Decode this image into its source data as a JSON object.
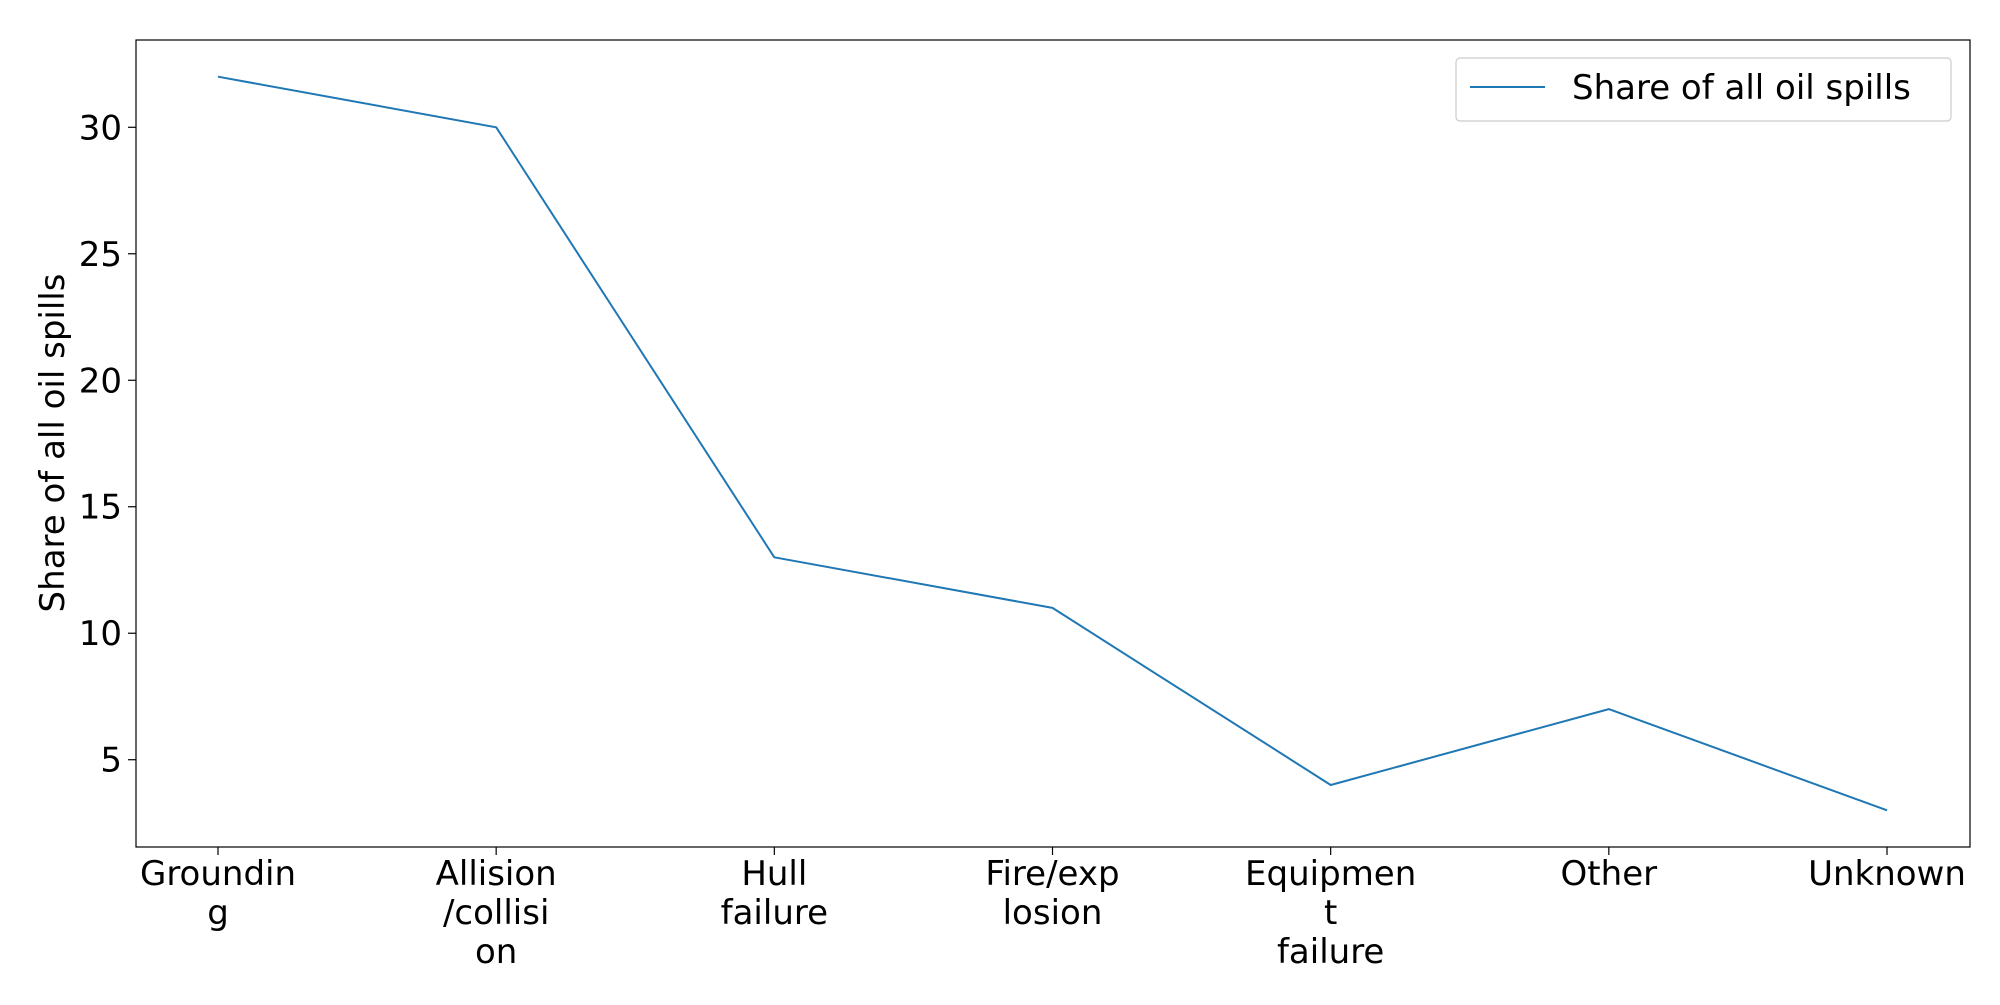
{
  "chart_data": {
    "type": "line",
    "categories": [
      [
        "Groundin",
        "g"
      ],
      [
        "Allision",
        "/collisi",
        "on"
      ],
      [
        "Hull",
        "failure"
      ],
      [
        "Fire/exp",
        "losion"
      ],
      [
        "Equipmen",
        "t",
        "failure"
      ],
      [
        "Other"
      ],
      [
        "Unknown"
      ]
    ],
    "series": [
      {
        "name": "Share of all oil spills",
        "values": [
          32,
          30,
          13,
          11,
          4,
          7,
          3
        ]
      }
    ],
    "xlabel": "",
    "ylabel": "Share of all oil spills",
    "ylim": [
      1.55,
      33.45
    ],
    "yticks": [
      5,
      10,
      15,
      20,
      25,
      30
    ],
    "grid": false,
    "legend": "top-right",
    "colors": {
      "series": "#1f77b4",
      "axis": "#000000"
    }
  }
}
